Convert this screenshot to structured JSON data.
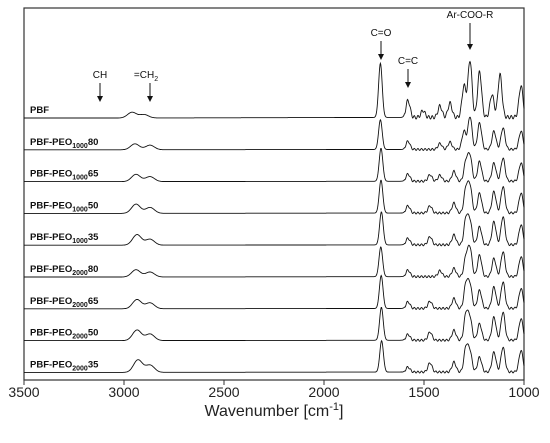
{
  "chart_data": {
    "type": "line",
    "xlabel": "Wavenumber [cm",
    "xlabel_sup": "-1",
    "xlabel_end": "]",
    "ylabel": "",
    "xlim": [
      3500,
      1000
    ],
    "x_ticks": [
      3500,
      3000,
      2500,
      2000,
      1500,
      1000
    ],
    "x_tick_labels": [
      "3500",
      "3000",
      "2500",
      "2000",
      "1500",
      "1000"
    ],
    "grid": false,
    "series": [
      {
        "name": "PBF",
        "base": "PBF",
        "sub": "",
        "suffix": "",
        "peaks": [
          [
            2960,
            0.1
          ],
          [
            2900,
            0.06
          ],
          [
            1718,
            0.95
          ],
          [
            1580,
            0.3
          ],
          [
            1505,
            0.12
          ],
          [
            1420,
            0.2
          ],
          [
            1370,
            0.25
          ],
          [
            1300,
            0.55
          ],
          [
            1270,
            1.0
          ],
          [
            1222,
            0.8
          ],
          [
            1160,
            0.4
          ],
          [
            1120,
            0.75
          ],
          [
            1015,
            0.55
          ]
        ]
      },
      {
        "name": "PBF-PEO100080",
        "base": "PBF-PEO",
        "sub": "1000",
        "suffix": "80",
        "peaks": [
          [
            2945,
            0.18
          ],
          [
            2870,
            0.14
          ],
          [
            1718,
            0.9
          ],
          [
            1580,
            0.25
          ],
          [
            1420,
            0.18
          ],
          [
            1370,
            0.22
          ],
          [
            1300,
            0.55
          ],
          [
            1270,
            1.0
          ],
          [
            1222,
            0.8
          ],
          [
            1150,
            0.55
          ],
          [
            1105,
            0.65
          ],
          [
            1015,
            0.55
          ]
        ]
      },
      {
        "name": "PBF-PEO100065",
        "base": "PBF-PEO",
        "sub": "1000",
        "suffix": "65",
        "peaks": [
          [
            2940,
            0.22
          ],
          [
            2870,
            0.15
          ],
          [
            1715,
            1.0
          ],
          [
            1580,
            0.22
          ],
          [
            1470,
            0.2
          ],
          [
            1420,
            0.18
          ],
          [
            1350,
            0.3
          ],
          [
            1290,
            0.6
          ],
          [
            1270,
            0.75
          ],
          [
            1222,
            0.6
          ],
          [
            1150,
            0.55
          ],
          [
            1105,
            0.7
          ],
          [
            1015,
            0.55
          ]
        ]
      },
      {
        "name": "PBF-PEO100050",
        "base": "PBF-PEO",
        "sub": "1000",
        "suffix": "50",
        "peaks": [
          [
            2940,
            0.28
          ],
          [
            2870,
            0.18
          ],
          [
            1715,
            1.0
          ],
          [
            1580,
            0.22
          ],
          [
            1470,
            0.22
          ],
          [
            1350,
            0.3
          ],
          [
            1290,
            0.75
          ],
          [
            1270,
            0.8
          ],
          [
            1222,
            0.6
          ],
          [
            1150,
            0.65
          ],
          [
            1105,
            0.8
          ],
          [
            1015,
            0.6
          ]
        ]
      },
      {
        "name": "PBF-PEO100035",
        "base": "PBF-PEO",
        "sub": "1000",
        "suffix": "35",
        "peaks": [
          [
            2935,
            0.32
          ],
          [
            2870,
            0.18
          ],
          [
            1713,
            1.0
          ],
          [
            1580,
            0.2
          ],
          [
            1470,
            0.25
          ],
          [
            1350,
            0.3
          ],
          [
            1290,
            0.8
          ],
          [
            1270,
            0.7
          ],
          [
            1222,
            0.55
          ],
          [
            1150,
            0.7
          ],
          [
            1105,
            0.85
          ],
          [
            1015,
            0.6
          ]
        ]
      },
      {
        "name": "PBF-PEO200080",
        "base": "PBF-PEO",
        "sub": "2000",
        "suffix": "80",
        "peaks": [
          [
            2940,
            0.22
          ],
          [
            2870,
            0.15
          ],
          [
            1716,
            0.9
          ],
          [
            1580,
            0.2
          ],
          [
            1420,
            0.18
          ],
          [
            1350,
            0.25
          ],
          [
            1290,
            0.6
          ],
          [
            1270,
            0.85
          ],
          [
            1222,
            0.65
          ],
          [
            1150,
            0.55
          ],
          [
            1105,
            0.75
          ],
          [
            1015,
            0.6
          ]
        ]
      },
      {
        "name": "PBF-PEO200065",
        "base": "PBF-PEO",
        "sub": "2000",
        "suffix": "65",
        "peaks": [
          [
            2935,
            0.28
          ],
          [
            2870,
            0.18
          ],
          [
            1714,
            1.0
          ],
          [
            1580,
            0.2
          ],
          [
            1470,
            0.22
          ],
          [
            1350,
            0.3
          ],
          [
            1290,
            0.75
          ],
          [
            1270,
            0.7
          ],
          [
            1222,
            0.55
          ],
          [
            1150,
            0.65
          ],
          [
            1105,
            0.8
          ],
          [
            1015,
            0.6
          ]
        ]
      },
      {
        "name": "PBF-PEO200050",
        "base": "PBF-PEO",
        "sub": "2000",
        "suffix": "50",
        "peaks": [
          [
            2935,
            0.32
          ],
          [
            2870,
            0.2
          ],
          [
            1713,
            1.0
          ],
          [
            1580,
            0.18
          ],
          [
            1470,
            0.25
          ],
          [
            1350,
            0.3
          ],
          [
            1290,
            0.8
          ],
          [
            1270,
            0.65
          ],
          [
            1222,
            0.5
          ],
          [
            1150,
            0.7
          ],
          [
            1105,
            0.85
          ],
          [
            1015,
            0.65
          ]
        ]
      },
      {
        "name": "PBF-PEO200035",
        "base": "PBF-PEO",
        "sub": "2000",
        "suffix": "35",
        "peaks": [
          [
            2930,
            0.38
          ],
          [
            2870,
            0.22
          ],
          [
            1712,
            0.95
          ],
          [
            1580,
            0.15
          ],
          [
            1470,
            0.28
          ],
          [
            1350,
            0.3
          ],
          [
            1290,
            0.75
          ],
          [
            1270,
            0.6
          ],
          [
            1222,
            0.45
          ],
          [
            1150,
            0.6
          ],
          [
            1105,
            0.75
          ],
          [
            1015,
            0.65
          ]
        ]
      }
    ],
    "annotations": [
      {
        "text": "CH",
        "sub": "",
        "x": 3120
      },
      {
        "text": "=CH",
        "sub": "2",
        "x": 2870
      },
      {
        "text": "C=O",
        "sub": "",
        "x": 1715
      },
      {
        "text": "C=C",
        "sub": "",
        "x": 1580
      },
      {
        "text": "Ar-COO-R",
        "sub": "",
        "x": 1270
      }
    ]
  }
}
